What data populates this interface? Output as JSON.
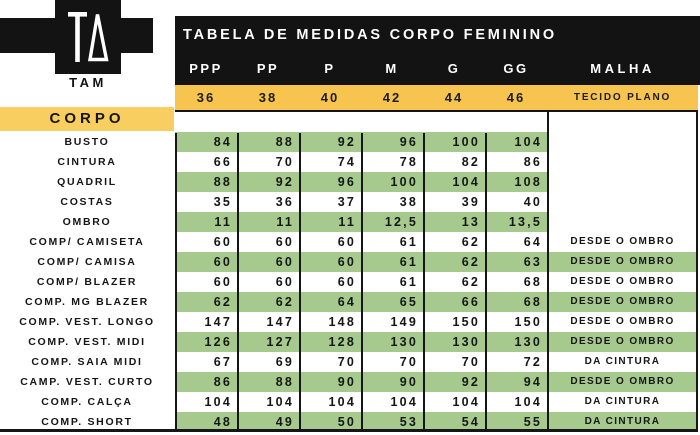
{
  "brand": {
    "name": "TAM",
    "logo_icon": "t-delta-monogram"
  },
  "header": {
    "title": "TABELA DE MEDIDAS CORPO FEMININO",
    "malha_label": "MALHA",
    "malha_value": "TECIDO PLANO",
    "section_label": "CORPO"
  },
  "colors": {
    "black": "#131313",
    "yellow_band": "#F6C44F",
    "yellow_section": "#F8CE60",
    "green_row": "#A6CA8E",
    "white": "#FFFFFF"
  },
  "chart_data": {
    "type": "table",
    "title": "TABELA DE MEDIDAS CORPO FEMININO",
    "size_labels": [
      "PPP",
      "PP",
      "P",
      "M",
      "G",
      "GG"
    ],
    "size_numbers": [
      "36",
      "38",
      "40",
      "42",
      "44",
      "46"
    ],
    "notes_column_header": "MALHA",
    "notes_column_value": "TECIDO PLANO",
    "section": "CORPO",
    "rows": [
      {
        "label": "BUSTO",
        "values": [
          "84",
          "88",
          "92",
          "96",
          "100",
          "104"
        ],
        "note": ""
      },
      {
        "label": "CINTURA",
        "values": [
          "66",
          "70",
          "74",
          "78",
          "82",
          "86"
        ],
        "note": ""
      },
      {
        "label": "QUADRIL",
        "values": [
          "88",
          "92",
          "96",
          "100",
          "104",
          "108"
        ],
        "note": ""
      },
      {
        "label": "COSTAS",
        "values": [
          "35",
          "36",
          "37",
          "38",
          "39",
          "40"
        ],
        "note": ""
      },
      {
        "label": "OMBRO",
        "values": [
          "11",
          "11",
          "11",
          "12,5",
          "13",
          "13,5"
        ],
        "note": ""
      },
      {
        "label": "COMP/ CAMISETA",
        "values": [
          "60",
          "60",
          "60",
          "61",
          "62",
          "64"
        ],
        "note": "DESDE O OMBRO"
      },
      {
        "label": "COMP/ CAMISA",
        "values": [
          "60",
          "60",
          "60",
          "61",
          "62",
          "63"
        ],
        "note": "DESDE O OMBRO"
      },
      {
        "label": "COMP/ BLAZER",
        "values": [
          "60",
          "60",
          "60",
          "61",
          "62",
          "68"
        ],
        "note": "DESDE O OMBRO"
      },
      {
        "label": "COMP. MG BLAZER",
        "values": [
          "62",
          "62",
          "64",
          "65",
          "66",
          "68"
        ],
        "note": "DESDE O OMBRO"
      },
      {
        "label": "COMP. VEST. LONGO",
        "values": [
          "147",
          "147",
          "148",
          "149",
          "150",
          "150"
        ],
        "note": "DESDE O OMBRO"
      },
      {
        "label": "COMP. VEST. MIDI",
        "values": [
          "126",
          "127",
          "128",
          "130",
          "130",
          "130"
        ],
        "note": "DESDE O OMBRO"
      },
      {
        "label": "COMP. SAIA MIDI",
        "values": [
          "67",
          "69",
          "70",
          "70",
          "70",
          "72"
        ],
        "note": "DA CINTURA"
      },
      {
        "label": "CAMP. VEST. CURTO",
        "values": [
          "86",
          "88",
          "90",
          "90",
          "92",
          "94"
        ],
        "note": "DESDE O OMBRO"
      },
      {
        "label": "COMP. CALÇA",
        "values": [
          "104",
          "104",
          "104",
          "104",
          "104",
          "104"
        ],
        "note": "DA CINTURA"
      },
      {
        "label": "COMP. SHORT",
        "values": [
          "48",
          "49",
          "50",
          "53",
          "54",
          "55"
        ],
        "note": "DA CINTURA"
      }
    ]
  }
}
